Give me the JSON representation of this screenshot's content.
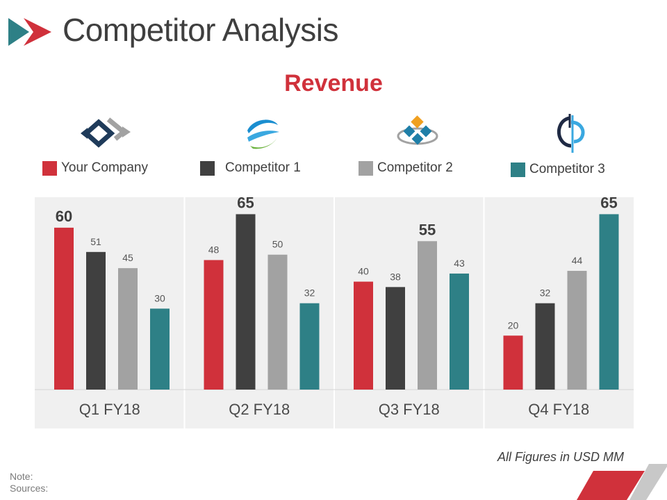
{
  "page": {
    "title": "Competitor Analysis"
  },
  "chart_data": {
    "type": "bar",
    "title": "Revenue",
    "categories": [
      "Q1 FY18",
      "Q2 FY18",
      "Q3 FY18",
      "Q4 FY18"
    ],
    "series": [
      {
        "name": "Your Company",
        "color": "#d0313b",
        "values": [
          60,
          48,
          40,
          20
        ]
      },
      {
        "name": "Competitor 1",
        "color": "#404040",
        "values": [
          51,
          65,
          38,
          32
        ]
      },
      {
        "name": "Competitor 2",
        "color": "#a2a2a2",
        "values": [
          45,
          50,
          55,
          44
        ]
      },
      {
        "name": "Competitor 3",
        "color": "#2e8086",
        "values": [
          30,
          32,
          43,
          65
        ]
      }
    ],
    "ylim": [
      0,
      70
    ],
    "xlabel": "",
    "ylabel": "",
    "grid": false,
    "highlight": "largest value per quarter shown in bold"
  },
  "legend": {
    "labels": [
      "Your Company",
      "Competitor 1",
      "Competitor 2",
      "Competitor 3"
    ],
    "logos": [
      "diamond-arrows-logo",
      "swoosh-globe-logo",
      "tile-globe-logo",
      "ring-logo"
    ]
  },
  "footer": {
    "units_note": "All Figures in USD MM",
    "note_label": "Note:",
    "sources_label": "Sources:"
  },
  "colors": {
    "accent_red": "#d0313b",
    "teal": "#2e8086",
    "dark": "#404040",
    "gray": "#a2a2a2",
    "panel_bg": "#f0f0f0"
  }
}
